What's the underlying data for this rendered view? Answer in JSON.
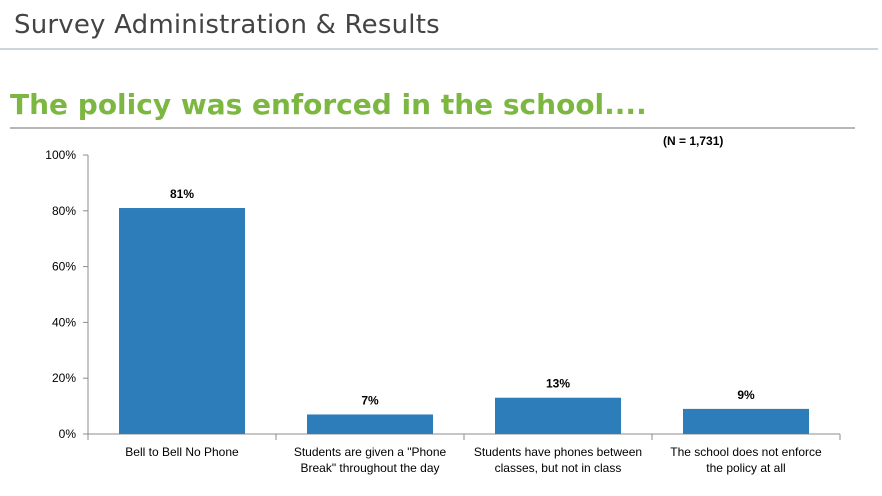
{
  "header": {
    "title": "Survey Administration & Results"
  },
  "slide": {
    "heading": "The policy was enforced in the school....",
    "note": "(N = 1,731)"
  },
  "colors": {
    "bar": "#2e7dbb",
    "heading": "#7cb742"
  },
  "chart_data": {
    "type": "bar",
    "title": "",
    "xlabel": "",
    "ylabel": "",
    "ylim": [
      0,
      100
    ],
    "yticks": [
      0,
      20,
      40,
      60,
      80,
      100
    ],
    "ytick_labels": [
      "0%",
      "20%",
      "40%",
      "60%",
      "80%",
      "100%"
    ],
    "categories": [
      [
        "Bell to Bell No Phone"
      ],
      [
        "Students are given a \"Phone",
        "Break\" throughout the day"
      ],
      [
        "Students have phones between",
        "classes, but not in class"
      ],
      [
        "The school does not enforce",
        "the policy at all"
      ]
    ],
    "values": [
      81,
      7,
      13,
      9
    ],
    "value_labels": [
      "81%",
      "7%",
      "13%",
      "9%"
    ],
    "grid": false,
    "legend": "none"
  }
}
